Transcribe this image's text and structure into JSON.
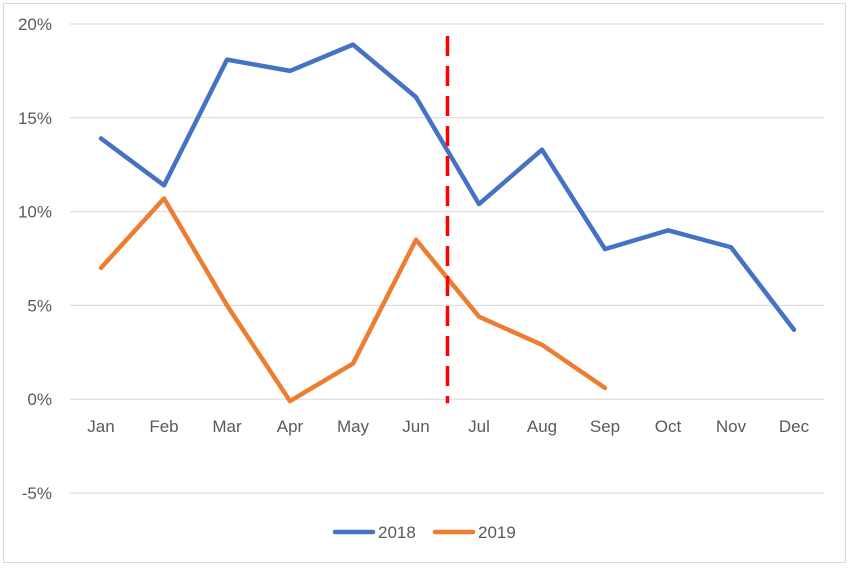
{
  "chart_data": {
    "type": "line",
    "categories": [
      "Jan",
      "Feb",
      "Mar",
      "Apr",
      "May",
      "Jun",
      "Jul",
      "Aug",
      "Sep",
      "Oct",
      "Nov",
      "Dec"
    ],
    "series": [
      {
        "name": "2018",
        "color": "#4472c4",
        "values": [
          13.9,
          11.4,
          18.1,
          17.5,
          18.9,
          16.1,
          10.4,
          13.3,
          8.0,
          9.0,
          8.1,
          3.7
        ]
      },
      {
        "name": "2019",
        "color": "#ed7d31",
        "values": [
          7.0,
          10.7,
          5.0,
          -0.1,
          1.9,
          8.5,
          4.4,
          2.9,
          0.6,
          null,
          null,
          null
        ]
      }
    ],
    "ylim": [
      -5,
      20
    ],
    "yticks": [
      20,
      15,
      10,
      5,
      0,
      -5
    ],
    "ytick_labels": [
      "20%",
      "15%",
      "10%",
      "5%",
      "0%",
      "-5%"
    ],
    "reference_line": {
      "style": "dashed",
      "color": "#ff0000",
      "position_between": [
        "Jun",
        "Jul"
      ]
    },
    "grid": true,
    "legend_placement": "bottom",
    "title": "",
    "xlabel": "",
    "ylabel": ""
  }
}
